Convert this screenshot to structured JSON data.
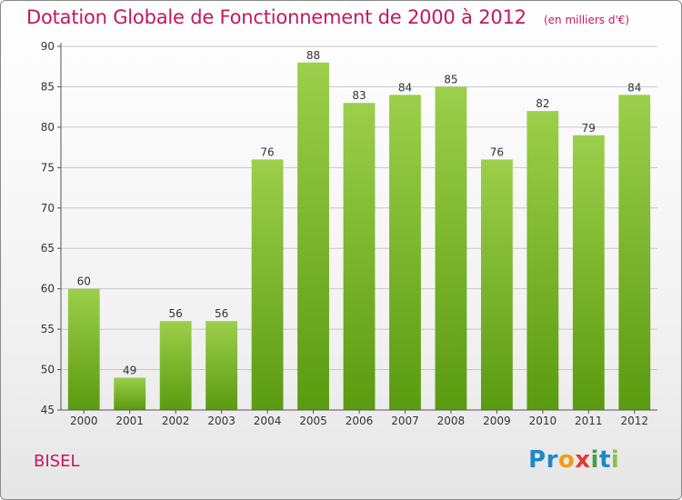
{
  "colors": {
    "title": "#c2185b",
    "bar_top": "#9ccf4b",
    "bar_bottom": "#5a9b10",
    "grid": "#c8c8c8",
    "axis": "#555555"
  },
  "header": {
    "title": "Dotation Globale de Fonctionnement de 2000 à 2012",
    "unit": "(en milliers d'€)"
  },
  "footer": {
    "commune": "BISEL",
    "logo_letters": [
      {
        "ch": "P",
        "color": "#1e88c8"
      },
      {
        "ch": "r",
        "color": "#1e88c8"
      },
      {
        "ch": "o",
        "color": "#f39c12"
      },
      {
        "ch": "x",
        "color": "#e53935"
      },
      {
        "ch": "i",
        "color": "#43a047"
      },
      {
        "ch": "t",
        "color": "#1e88c8"
      },
      {
        "ch": "i",
        "color": "#8bc34a"
      }
    ]
  },
  "chart_data": {
    "type": "bar",
    "title": "Dotation Globale de Fonctionnement de 2000 à 2012",
    "subtitle": "(en milliers d'€)",
    "categories": [
      "2000",
      "2001",
      "2002",
      "2003",
      "2004",
      "2005",
      "2006",
      "2007",
      "2008",
      "2009",
      "2010",
      "2011",
      "2012"
    ],
    "values": [
      60,
      49,
      56,
      56,
      76,
      88,
      83,
      84,
      85,
      76,
      82,
      79,
      84
    ],
    "ylim": [
      45,
      90
    ],
    "yticks": [
      45,
      50,
      55,
      60,
      65,
      70,
      75,
      80,
      85,
      90
    ],
    "xlabel": "",
    "ylabel": "",
    "grid": true,
    "legend": "none"
  }
}
